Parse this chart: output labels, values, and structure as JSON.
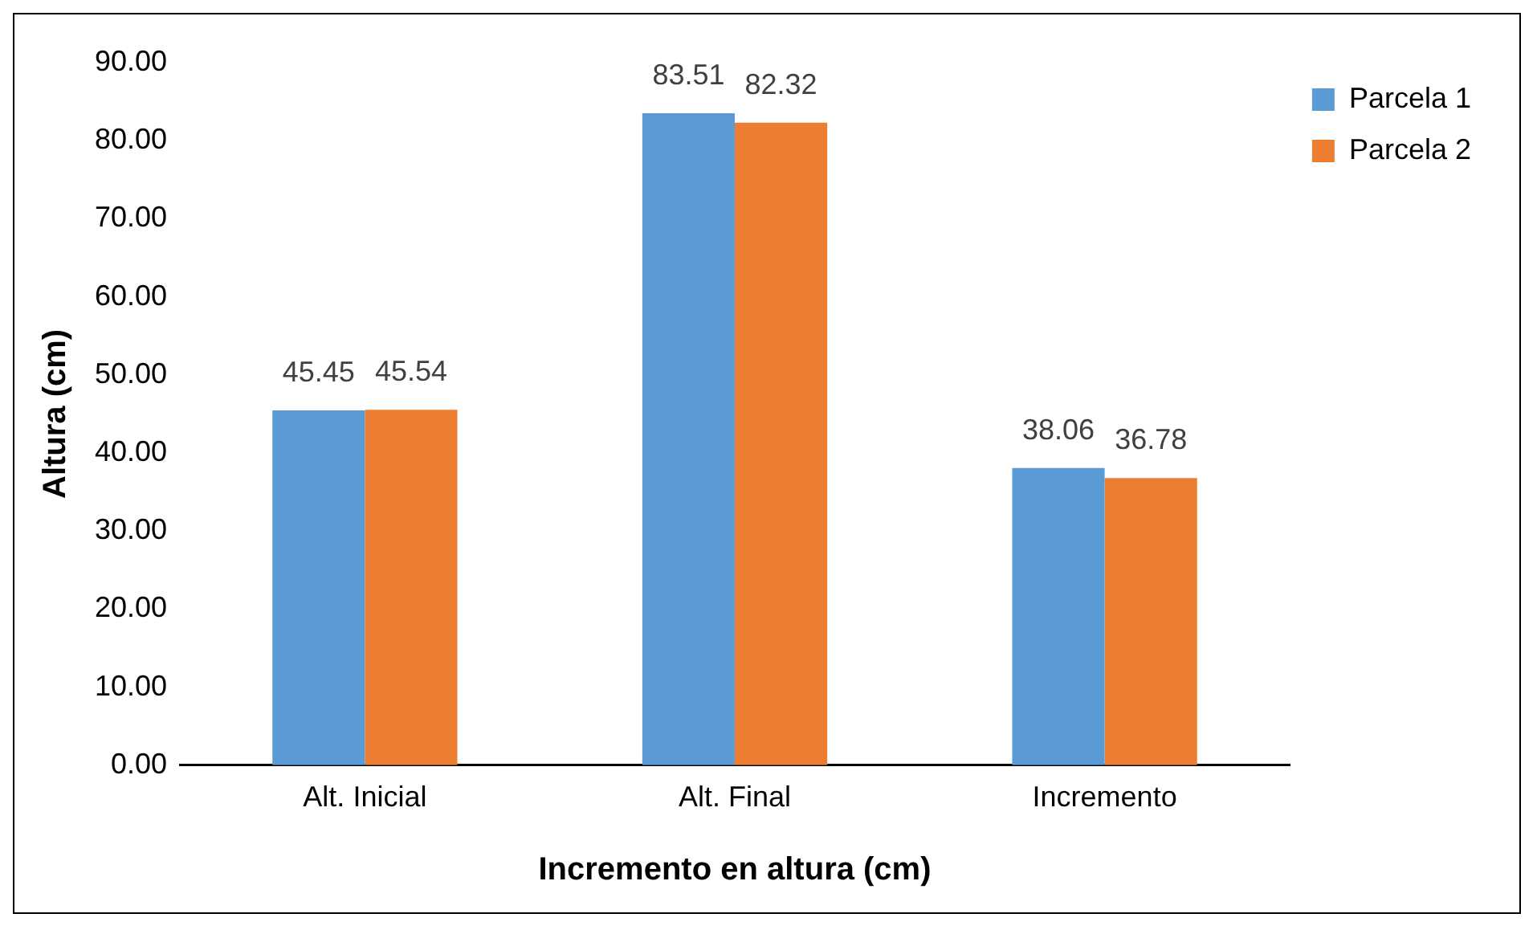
{
  "chart_data": {
    "type": "bar",
    "xlabel": "Incremento en altura (cm)",
    "ylabel": "Altura (cm)",
    "categories": [
      "Alt. Inicial",
      "Alt. Final",
      "Incremento"
    ],
    "series": [
      {
        "name": "Parcela 1",
        "color": "#5b9bd5",
        "values": [
          45.45,
          83.51,
          38.06
        ]
      },
      {
        "name": "Parcela 2",
        "color": "#ed7d31",
        "values": [
          45.54,
          82.32,
          36.78
        ]
      }
    ],
    "ylim": [
      0,
      90
    ],
    "yticks": [
      {
        "value": 0,
        "label": "0.00"
      },
      {
        "value": 10,
        "label": "10.00"
      },
      {
        "value": 20,
        "label": "20.00"
      },
      {
        "value": 30,
        "label": "30.00"
      },
      {
        "value": 40,
        "label": "40.00"
      },
      {
        "value": 50,
        "label": "50.00"
      },
      {
        "value": 60,
        "label": "60.00"
      },
      {
        "value": 70,
        "label": "70.00"
      },
      {
        "value": 80,
        "label": "80.00"
      },
      {
        "value": 90,
        "label": "90.00"
      }
    ],
    "grid": false,
    "legend": "top right",
    "data_labels": true
  }
}
